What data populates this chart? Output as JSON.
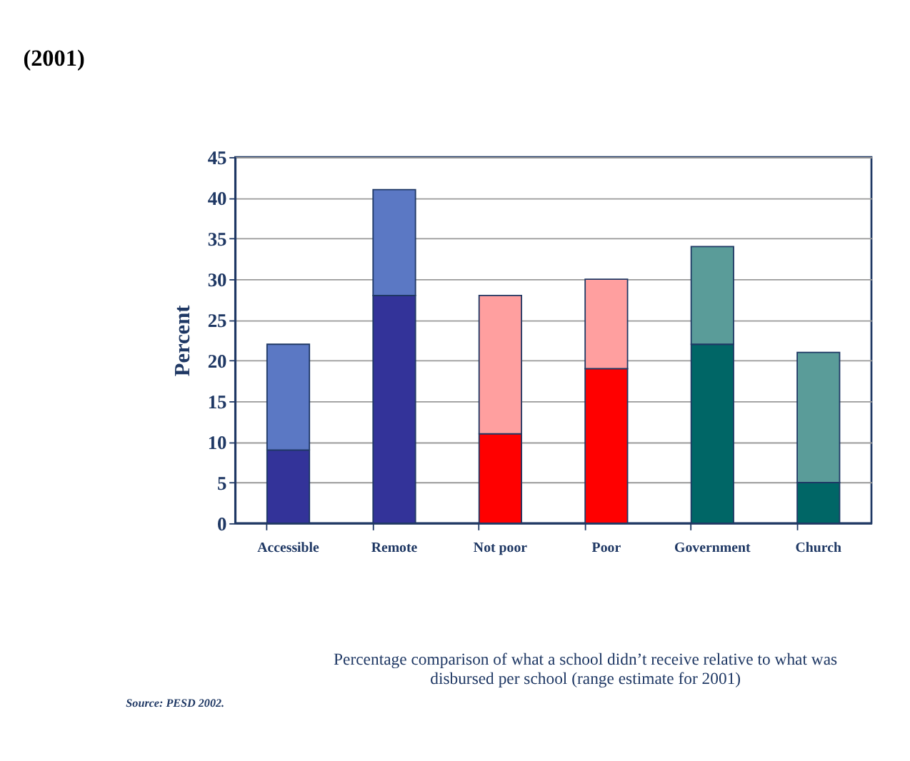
{
  "chart_data": {
    "type": "bar",
    "stacked": true,
    "title": "(2001)",
    "ylabel": "Percent",
    "categories": [
      "Accessible",
      "Remote",
      "Not poor",
      "Poor",
      "Government",
      "Church"
    ],
    "series": [
      {
        "colors": [
          "#333399",
          "#333399",
          "#ff0000",
          "#ff0000",
          "#006666",
          "#006666"
        ],
        "values": [
          9,
          28,
          11,
          19,
          22,
          5
        ]
      },
      {
        "colors": [
          "#5b78c4",
          "#5b78c4",
          "#ff9f9f",
          "#ff9f9f",
          "#5a9c99",
          "#5a9c99"
        ],
        "values": [
          13,
          13,
          17,
          11,
          12,
          16
        ]
      }
    ],
    "ylim": [
      0,
      45
    ],
    "yticks": [
      0,
      5,
      10,
      15,
      20,
      25,
      30,
      35,
      40,
      45
    ],
    "grid": "y",
    "annotations": [
      "Percentage comparison of what a school didn’t receive relative to what was disbursed per school (range estimate for 2001)",
      "Source: PESD 2002."
    ]
  }
}
